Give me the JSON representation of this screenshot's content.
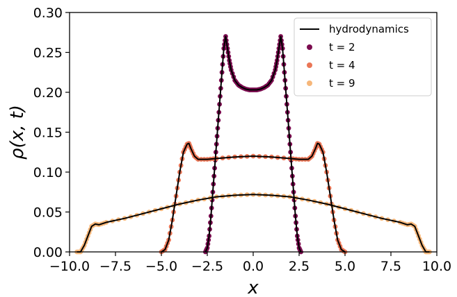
{
  "chart_data": {
    "type": "line",
    "title": "",
    "xlabel": "x",
    "ylabel": "ρ(x, t)",
    "xlim": [
      -10.0,
      10.0
    ],
    "ylim": [
      0.0,
      0.3
    ],
    "xticks": [
      "−10.0",
      "−7.5",
      "−5.0",
      "−2.5",
      "0.0",
      "2.5",
      "5.0",
      "7.5",
      "10.0"
    ],
    "yticks": [
      "0.00",
      "0.05",
      "0.10",
      "0.15",
      "0.20",
      "0.25",
      "0.30"
    ],
    "grid": false,
    "legend_position": "top-right",
    "legend": [
      {
        "label": "hydrodynamics",
        "kind": "line",
        "color": "#000000"
      },
      {
        "label": "t = 2",
        "kind": "dot",
        "color": "#7b0c4f"
      },
      {
        "label": "t = 4",
        "kind": "dot",
        "color": "#ea7656"
      },
      {
        "label": "t = 9",
        "kind": "dot",
        "color": "#f6b77a"
      }
    ],
    "series": [
      {
        "name": "t = 2",
        "color": "#7b0c4f",
        "x": [
          -2.6,
          -2.5,
          -2.4,
          -2.3,
          -2.2,
          -2.1,
          -2.0,
          -1.9,
          -1.8,
          -1.7,
          -1.6,
          -1.5,
          -1.4,
          -1.3,
          -1.2,
          -1.0,
          -0.8,
          -0.6,
          -0.4,
          -0.2,
          0.0,
          0.2,
          0.4,
          0.6,
          0.8,
          1.0,
          1.2,
          1.3,
          1.4,
          1.5,
          1.6,
          1.7,
          1.8,
          1.9,
          2.0,
          2.1,
          2.2,
          2.3,
          2.4,
          2.5,
          2.6
        ],
        "y": [
          0.0,
          0.005,
          0.02,
          0.045,
          0.075,
          0.105,
          0.135,
          0.165,
          0.195,
          0.225,
          0.255,
          0.27,
          0.255,
          0.24,
          0.228,
          0.215,
          0.209,
          0.206,
          0.204,
          0.203,
          0.203,
          0.203,
          0.204,
          0.206,
          0.209,
          0.215,
          0.228,
          0.24,
          0.255,
          0.27,
          0.255,
          0.225,
          0.195,
          0.165,
          0.135,
          0.105,
          0.075,
          0.045,
          0.02,
          0.005,
          0.0
        ]
      },
      {
        "name": "t = 4",
        "color": "#ea7656",
        "x": [
          -5.0,
          -4.8,
          -4.6,
          -4.4,
          -4.2,
          -4.0,
          -3.8,
          -3.6,
          -3.5,
          -3.4,
          -3.2,
          -3.0,
          -2.5,
          -2.0,
          -1.0,
          0.0,
          1.0,
          2.0,
          2.5,
          3.0,
          3.2,
          3.4,
          3.5,
          3.6,
          3.8,
          4.0,
          4.2,
          4.4,
          4.6,
          4.8,
          5.0
        ],
        "y": [
          0.0,
          0.003,
          0.015,
          0.04,
          0.07,
          0.1,
          0.125,
          0.135,
          0.136,
          0.13,
          0.12,
          0.116,
          0.116,
          0.117,
          0.119,
          0.12,
          0.119,
          0.117,
          0.116,
          0.116,
          0.12,
          0.13,
          0.136,
          0.135,
          0.125,
          0.1,
          0.07,
          0.04,
          0.015,
          0.003,
          0.0
        ]
      },
      {
        "name": "t = 9",
        "color": "#f6b77a",
        "x": [
          -9.6,
          -9.4,
          -9.2,
          -9.0,
          -8.8,
          -8.6,
          -8.4,
          -8.0,
          -7.0,
          -6.0,
          -5.0,
          -4.0,
          -3.0,
          -2.0,
          -1.0,
          0.0,
          1.0,
          2.0,
          3.0,
          4.0,
          5.0,
          6.0,
          7.0,
          8.0,
          8.4,
          8.6,
          8.8,
          9.0,
          9.2,
          9.4,
          9.6
        ],
        "y": [
          0.0,
          0.0,
          0.008,
          0.02,
          0.032,
          0.035,
          0.034,
          0.037,
          0.042,
          0.048,
          0.054,
          0.06,
          0.065,
          0.069,
          0.071,
          0.072,
          0.071,
          0.069,
          0.065,
          0.06,
          0.054,
          0.048,
          0.042,
          0.037,
          0.034,
          0.035,
          0.032,
          0.02,
          0.008,
          0.0,
          0.0
        ]
      }
    ]
  }
}
